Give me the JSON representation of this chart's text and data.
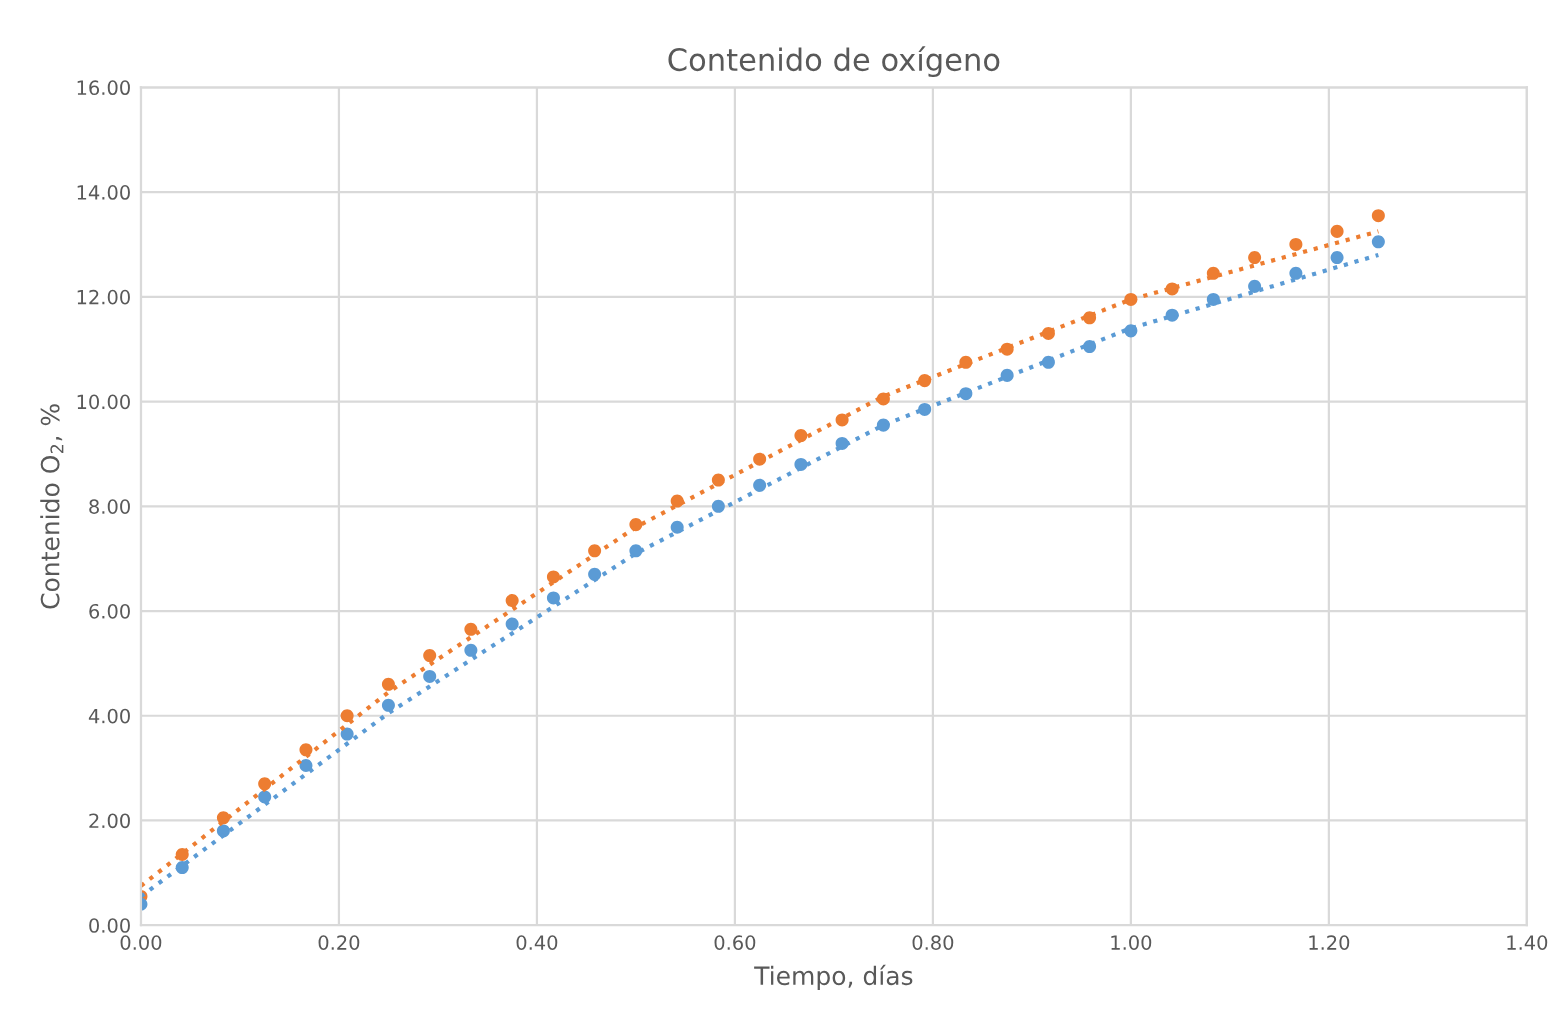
{
  "chart_data": {
    "type": "scatter",
    "title": "Contenido de oxígeno",
    "xlabel": "Tiempo, días",
    "ylabel": "Contenido O$_{2}$, %",
    "x": [
      0,
      0.0417,
      0.0833,
      0.125,
      0.1667,
      0.2083,
      0.25,
      0.2917,
      0.3333,
      0.375,
      0.4167,
      0.4583,
      0.5,
      0.5417,
      0.5833,
      0.625,
      0.6667,
      0.7083,
      0.75,
      0.7917,
      0.8333,
      0.875,
      0.9167,
      0.9583,
      1.0,
      1.0417,
      1.0833,
      1.125,
      1.1667,
      1.2083,
      1.25
    ],
    "series": [
      {
        "color": "#ed7d31",
        "marker": "circle",
        "values": [
          0.55,
          1.35,
          2.05,
          2.7,
          3.35,
          4.0,
          4.6,
          5.15,
          5.65,
          6.2,
          6.65,
          7.15,
          7.65,
          8.1,
          8.5,
          8.9,
          9.35,
          9.65,
          10.05,
          10.4,
          10.75,
          11.0,
          11.3,
          11.6,
          11.95,
          12.15,
          12.45,
          12.75,
          13.0,
          13.25,
          13.55
        ]
      },
      {
        "color": "#5b9bd5",
        "marker": "circle",
        "values": [
          0.4,
          1.1,
          1.8,
          2.45,
          3.05,
          3.65,
          4.2,
          4.75,
          5.25,
          5.75,
          6.25,
          6.7,
          7.15,
          7.6,
          8.0,
          8.4,
          8.8,
          9.2,
          9.55,
          9.85,
          10.15,
          10.5,
          10.75,
          11.05,
          11.35,
          11.65,
          11.95,
          12.2,
          12.45,
          12.75,
          13.05
        ]
      },
      {
        "type": "line",
        "color": "#ed7d31",
        "line_style": "dotted",
        "marker": "none",
        "x": [
          0,
          0.25,
          0.5,
          0.75,
          1.0,
          1.25
        ],
        "values": [
          0.75,
          4.45,
          7.6,
          10.1,
          11.95,
          13.25
        ]
      },
      {
        "type": "line",
        "color": "#5b9bd5",
        "line_style": "dotted",
        "marker": "none",
        "x": [
          0,
          0.25,
          0.5,
          0.75,
          1.0,
          1.25
        ],
        "values": [
          0.55,
          4.05,
          7.1,
          9.55,
          11.4,
          12.8
        ]
      }
    ],
    "xlim": [
      0,
      1.4
    ],
    "ylim": [
      0,
      16
    ],
    "xticks": [
      {
        "value": 0,
        "label": "0.00"
      },
      {
        "value": 0.2,
        "label": "0.20"
      },
      {
        "value": 0.4,
        "label": "0.40"
      },
      {
        "value": 0.6,
        "label": "0.60"
      },
      {
        "value": 0.8,
        "label": "0.80"
      },
      {
        "value": 1.0,
        "label": "1.00"
      },
      {
        "value": 1.2,
        "label": "1.20"
      },
      {
        "value": 1.4,
        "label": "1.40"
      }
    ],
    "yticks": [
      {
        "value": 0,
        "label": "0.00"
      },
      {
        "value": 2,
        "label": "2.00"
      },
      {
        "value": 4,
        "label": "4.00"
      },
      {
        "value": 6,
        "label": "6.00"
      },
      {
        "value": 8,
        "label": "8.00"
      },
      {
        "value": 10,
        "label": "10.00"
      },
      {
        "value": 12,
        "label": "12.00"
      },
      {
        "value": 14,
        "label": "14.00"
      },
      {
        "value": 16,
        "label": "16.00"
      }
    ],
    "grid": true
  }
}
